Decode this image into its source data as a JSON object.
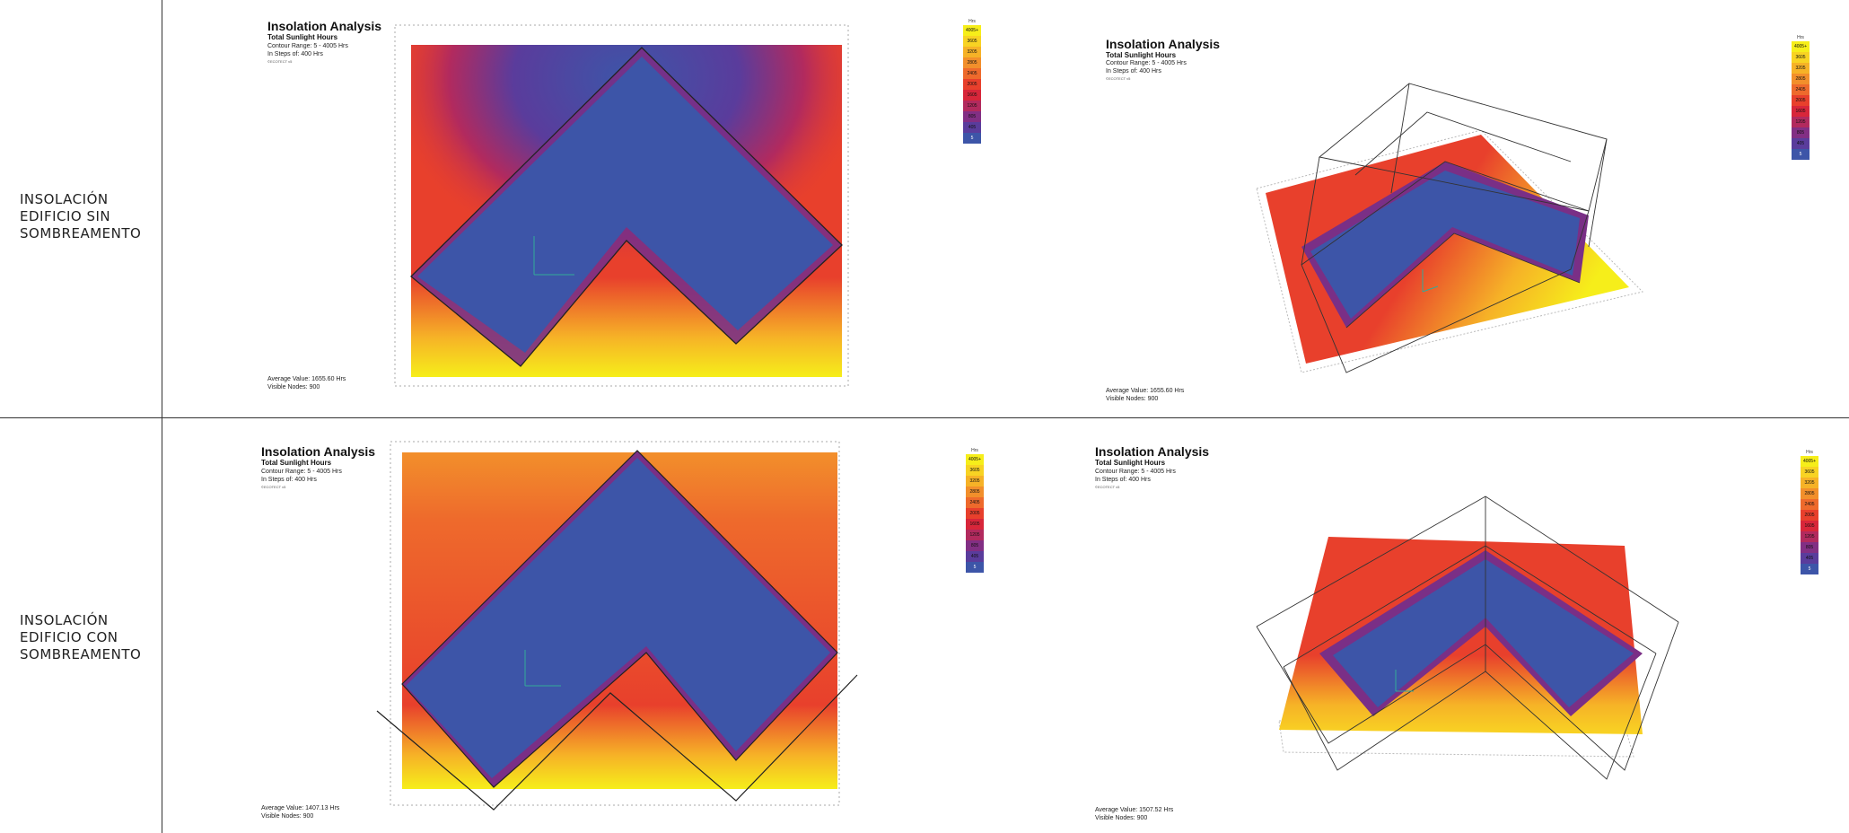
{
  "rows": [
    {
      "label_lines": [
        "INSOLACIÓN",
        "EDIFICIO SIN",
        "SOMBREAMENTO"
      ]
    },
    {
      "label_lines": [
        "INSOLACIÓN",
        "EDIFICIO CON",
        "SOMBREAMENTO"
      ]
    }
  ],
  "legend": {
    "unit": "Hrs",
    "levels": [
      "4005+",
      "3605",
      "3205",
      "2805",
      "2405",
      "2005",
      "1605",
      "1205",
      "805",
      "405",
      "5"
    ],
    "colors": [
      "#f6ee1a",
      "#f8d323",
      "#f6b227",
      "#f28f2b",
      "#ee6a2c",
      "#e8402c",
      "#d8263a",
      "#b22a5e",
      "#822f84",
      "#5a3c9c",
      "#3d55a8"
    ]
  },
  "panels": [
    {
      "title": "Insolation Analysis",
      "subtitle": "Total Sunlight Hours",
      "range": "Contour Range: 5 - 4005 Hrs",
      "steps": "In Steps of: 400 Hrs",
      "logo": "©ECOTECT v5",
      "average": "Average Value: 1655.60 Hrs",
      "nodes": "Visible Nodes: 900"
    },
    {
      "title": "Insolation Analysis",
      "subtitle": "Total Sunlight Hours",
      "range": "Contour Range: 5 - 4005 Hrs",
      "steps": "In Steps of: 400 Hrs",
      "logo": "©ECOTECT v5",
      "average": "Average Value: 1655.60 Hrs",
      "nodes": "Visible Nodes: 900"
    },
    {
      "title": "Insolation Analysis",
      "subtitle": "Total Sunlight Hours",
      "range": "Contour Range: 5 - 4005 Hrs",
      "steps": "In Steps of: 400 Hrs",
      "logo": "©ECOTECT v5",
      "average": "Average Value: 1407.13 Hrs",
      "nodes": "Visible Nodes: 900"
    },
    {
      "title": "Insolation Analysis",
      "subtitle": "Total Sunlight Hours",
      "range": "Contour Range: 5 - 4005 Hrs",
      "steps": "In Steps of: 400 Hrs",
      "logo": "©ECOTECT v5",
      "average": "Average Value: 1507.52 Hrs",
      "nodes": "Visible Nodes: 900"
    }
  ]
}
